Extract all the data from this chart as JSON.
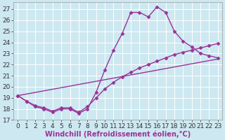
{
  "xlabel": "Windchill (Refroidissement éolien,°C)",
  "bg_color": "#cde8f0",
  "line_color": "#993399",
  "xlim": [
    -0.5,
    23.5
  ],
  "ylim": [
    17,
    27.6
  ],
  "yticks": [
    17,
    18,
    19,
    20,
    21,
    22,
    23,
    24,
    25,
    26,
    27
  ],
  "xticks": [
    0,
    1,
    2,
    3,
    4,
    5,
    6,
    7,
    8,
    9,
    10,
    11,
    12,
    13,
    14,
    15,
    16,
    17,
    18,
    19,
    20,
    21,
    22,
    23
  ],
  "line1_x": [
    0,
    1,
    2,
    3,
    4,
    5,
    6,
    7,
    8,
    9,
    10,
    11,
    12,
    13,
    14,
    15,
    16,
    17,
    18,
    19,
    20,
    21,
    22,
    23
  ],
  "line1_y": [
    19.2,
    18.7,
    18.2,
    18.0,
    17.7,
    18.0,
    18.0,
    17.6,
    18.0,
    19.5,
    21.5,
    23.3,
    24.8,
    26.7,
    26.7,
    26.3,
    27.2,
    26.7,
    25.0,
    24.1,
    23.6,
    23.0,
    22.8,
    22.6
  ],
  "line2_x": [
    0,
    1,
    2,
    3,
    4,
    5,
    6,
    7,
    8,
    9,
    10,
    11,
    12,
    13,
    14,
    15,
    16,
    17,
    18,
    19,
    20,
    21,
    22,
    23
  ],
  "line2_y": [
    19.2,
    18.7,
    18.3,
    18.1,
    17.8,
    18.1,
    18.1,
    17.7,
    18.2,
    19.0,
    19.8,
    20.4,
    20.9,
    21.3,
    21.7,
    22.0,
    22.3,
    22.6,
    22.9,
    23.1,
    23.3,
    23.5,
    23.7,
    23.9
  ],
  "line3_x": [
    0,
    23
  ],
  "line3_y": [
    19.2,
    22.5
  ],
  "grid_color": "#ffffff",
  "marker": "D",
  "markersize": 2.5,
  "linewidth": 1.0,
  "xlabel_fontsize": 7,
  "tick_fontsize": 6.5
}
